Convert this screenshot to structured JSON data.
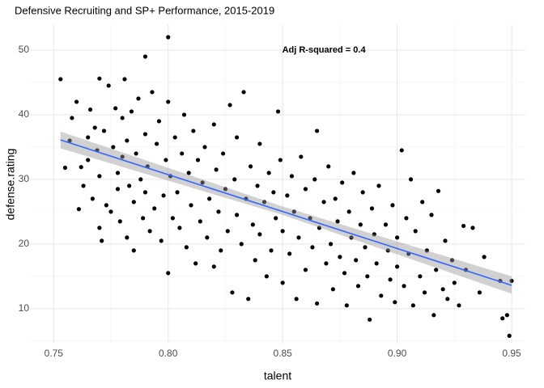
{
  "chart_data": {
    "type": "scatter",
    "title": "Defensive Recruiting and SP+ Performance, 2015-2019",
    "x_label": "talent",
    "y_label": "defense.rating",
    "annotation": {
      "text": "Adj R-squared = 0.4",
      "x": 0.868,
      "y": 50
    },
    "xlim": [
      0.74,
      0.956
    ],
    "ylim": [
      4.6,
      54
    ],
    "xticks": [
      0.75,
      {
        "value": 0.8,
        "label": "0.80"
      },
      0.85,
      {
        "value": 0.9,
        "label": "0.90"
      },
      0.95
    ],
    "yticks": [
      10,
      20,
      30,
      40,
      50
    ],
    "x_minor_ticks": [
      0.775,
      0.825,
      0.875,
      0.925
    ],
    "y_minor_ticks": [
      5,
      15,
      25,
      35,
      45
    ],
    "grid": true,
    "color": "#000000",
    "x": [
      0.753,
      0.755,
      0.757,
      0.758,
      0.76,
      0.761,
      0.762,
      0.763,
      0.765,
      0.765,
      0.766,
      0.767,
      0.768,
      0.769,
      0.77,
      0.77,
      0.77,
      0.771,
      0.772,
      0.773,
      0.774,
      0.775,
      0.776,
      0.777,
      0.778,
      0.778,
      0.779,
      0.78,
      0.78,
      0.781,
      0.782,
      0.782,
      0.783,
      0.784,
      0.785,
      0.785,
      0.786,
      0.787,
      0.788,
      0.789,
      0.79,
      0.79,
      0.79,
      0.791,
      0.792,
      0.793,
      0.794,
      0.795,
      0.796,
      0.797,
      0.798,
      0.799,
      0.8,
      0.8,
      0.8,
      0.801,
      0.802,
      0.803,
      0.804,
      0.805,
      0.806,
      0.807,
      0.808,
      0.809,
      0.81,
      0.811,
      0.812,
      0.813,
      0.814,
      0.815,
      0.816,
      0.817,
      0.818,
      0.82,
      0.82,
      0.821,
      0.822,
      0.823,
      0.824,
      0.825,
      0.826,
      0.827,
      0.828,
      0.829,
      0.83,
      0.83,
      0.832,
      0.833,
      0.834,
      0.835,
      0.836,
      0.837,
      0.838,
      0.839,
      0.84,
      0.84,
      0.842,
      0.843,
      0.844,
      0.845,
      0.846,
      0.847,
      0.848,
      0.849,
      0.85,
      0.85,
      0.852,
      0.853,
      0.854,
      0.855,
      0.856,
      0.857,
      0.858,
      0.86,
      0.86,
      0.862,
      0.863,
      0.864,
      0.865,
      0.865,
      0.866,
      0.868,
      0.869,
      0.87,
      0.871,
      0.872,
      0.873,
      0.874,
      0.875,
      0.876,
      0.877,
      0.878,
      0.879,
      0.88,
      0.881,
      0.882,
      0.883,
      0.884,
      0.885,
      0.886,
      0.887,
      0.888,
      0.889,
      0.89,
      0.891,
      0.892,
      0.893,
      0.895,
      0.896,
      0.897,
      0.898,
      0.899,
      0.9,
      0.9,
      0.902,
      0.903,
      0.904,
      0.905,
      0.906,
      0.907,
      0.908,
      0.91,
      0.911,
      0.912,
      0.913,
      0.915,
      0.916,
      0.917,
      0.918,
      0.92,
      0.921,
      0.922,
      0.924,
      0.925,
      0.927,
      0.929,
      0.93,
      0.933,
      0.936,
      0.938,
      0.945,
      0.946,
      0.948,
      0.949,
      0.95
    ],
    "values": [
      45.5,
      31.8,
      36,
      39.5,
      42,
      25.4,
      31.9,
      29,
      33,
      36.5,
      40.8,
      27,
      38,
      34.5,
      45.6,
      22.5,
      30.5,
      20.5,
      37.5,
      26,
      44.5,
      25,
      35,
      41,
      31,
      28.5,
      23.5,
      39.5,
      33.5,
      45.5,
      21,
      36,
      29,
      40.5,
      26.5,
      19,
      34,
      42.5,
      30,
      24,
      49,
      37,
      28,
      32,
      22,
      43.5,
      25.5,
      35.5,
      39,
      20.5,
      27.5,
      33,
      52,
      15.5,
      42,
      30.5,
      24,
      36.5,
      28,
      22.5,
      34,
      40,
      19.5,
      31,
      26,
      37.5,
      17,
      33,
      23.5,
      29.5,
      35,
      21,
      27,
      38.5,
      16.5,
      31.5,
      25,
      19,
      34,
      28.5,
      22,
      41.5,
      12.5,
      30,
      24.5,
      36.5,
      20,
      43.5,
      27,
      11.5,
      32,
      23,
      17.5,
      29,
      35.5,
      21.5,
      26.5,
      15,
      31,
      19,
      28,
      24,
      40.5,
      33,
      22,
      14,
      27.5,
      18.5,
      30.5,
      25,
      11.5,
      21,
      33.5,
      16,
      28.5,
      24,
      19.5,
      30,
      37.5,
      10.8,
      22.5,
      26.5,
      17,
      32,
      20,
      13,
      27,
      23.5,
      18,
      29.5,
      15.5,
      10.5,
      25,
      21,
      31,
      17.5,
      13.5,
      23,
      28,
      19.5,
      15,
      8.3,
      25.5,
      21.5,
      17,
      29,
      12,
      23,
      19,
      14.5,
      26,
      11,
      21,
      16.5,
      34.5,
      13.5,
      24,
      18.5,
      30,
      10.5,
      22,
      15,
      26.5,
      12.5,
      19,
      24.5,
      9,
      16,
      28.2,
      13,
      20.5,
      11.5,
      17.5,
      14,
      10.5,
      22.8,
      16,
      22.5,
      12.5,
      18,
      14.3,
      8.5,
      9,
      5.8,
      14.3
    ],
    "trend": {
      "color": "#3366ff",
      "x": [
        0.753,
        0.95
      ],
      "y": [
        36.1,
        13.6
      ]
    },
    "band": {
      "color": "#999999",
      "x": [
        0.753,
        0.85,
        0.95
      ],
      "lower": [
        34.8,
        24.5,
        12.3
      ],
      "upper": [
        37.4,
        25.8,
        15.0
      ]
    }
  }
}
